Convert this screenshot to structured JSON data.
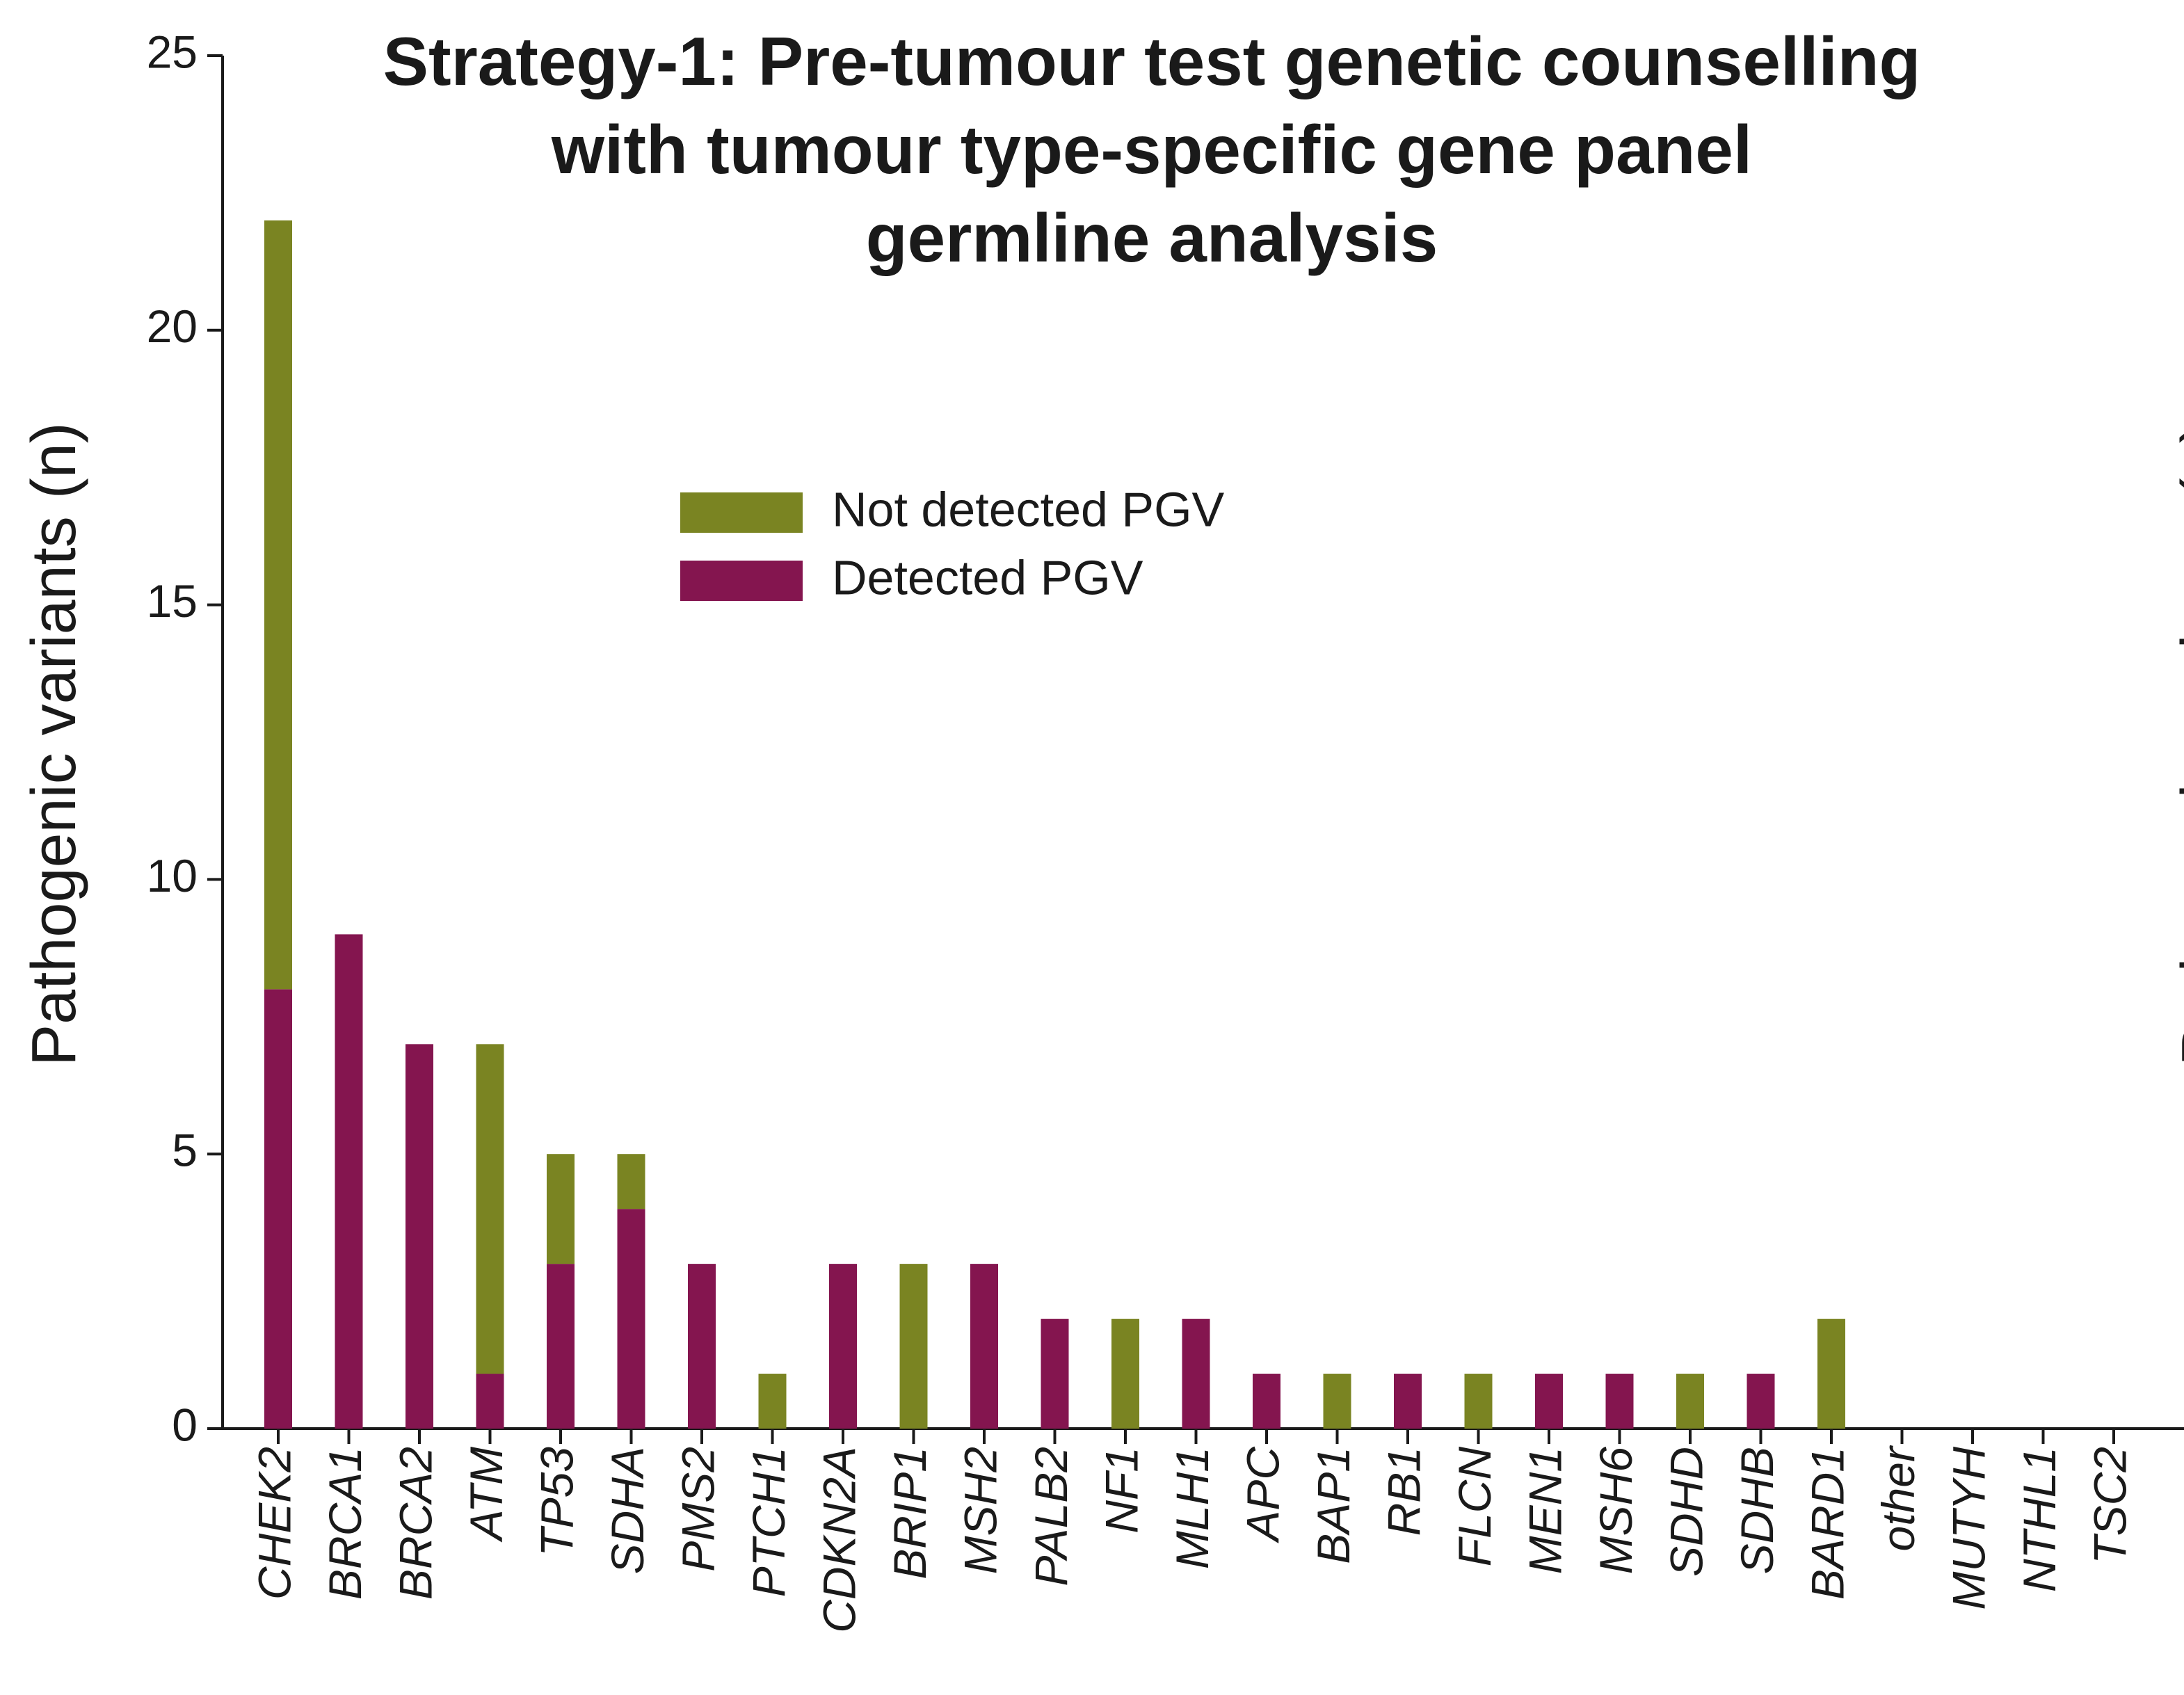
{
  "chart_data": {
    "type": "stacked_bar",
    "title": [
      "Strategy-1: Pre-tumour test genetic counselling",
      "with tumour type-specific gene panel",
      "germline analysis"
    ],
    "y_label": "Pathogenic variants (n)",
    "right_y_label": "Pathogenic variants (n)",
    "categories": [
      "CHEK2",
      "BRCA1",
      "BRCA2",
      "ATM",
      "TP53",
      "SDHA",
      "PMS2",
      "PTCH1",
      "CDKN2A",
      "BRIP1",
      "MSH2",
      "PALB2",
      "NF1",
      "MLH1",
      "APC",
      "BAP1",
      "RB1",
      "FLCN",
      "MEN1",
      "MSH6",
      "SDHD",
      "SDHB",
      "BARD1",
      "other",
      "MUTYH",
      "NTHL1",
      "TSC2"
    ],
    "series": [
      {
        "name": "Detected PGV",
        "color": "#84154f",
        "values": [
          8,
          9,
          7,
          1,
          3,
          4,
          3,
          0,
          3,
          0,
          3,
          2,
          0,
          2,
          1,
          0,
          1,
          0,
          1,
          1,
          0,
          1,
          0,
          0,
          0,
          0,
          0
        ]
      },
      {
        "name": "Not detected PGV",
        "color": "#7a8422",
        "values": [
          14,
          0,
          0,
          6,
          2,
          1,
          0,
          1,
          0,
          3,
          0,
          0,
          2,
          0,
          0,
          1,
          0,
          1,
          0,
          0,
          1,
          0,
          2,
          0,
          0,
          0,
          0
        ]
      }
    ],
    "ylim": [
      0,
      25
    ],
    "yticks": [
      0,
      5,
      10,
      15,
      20,
      25
    ],
    "grid": false
  }
}
